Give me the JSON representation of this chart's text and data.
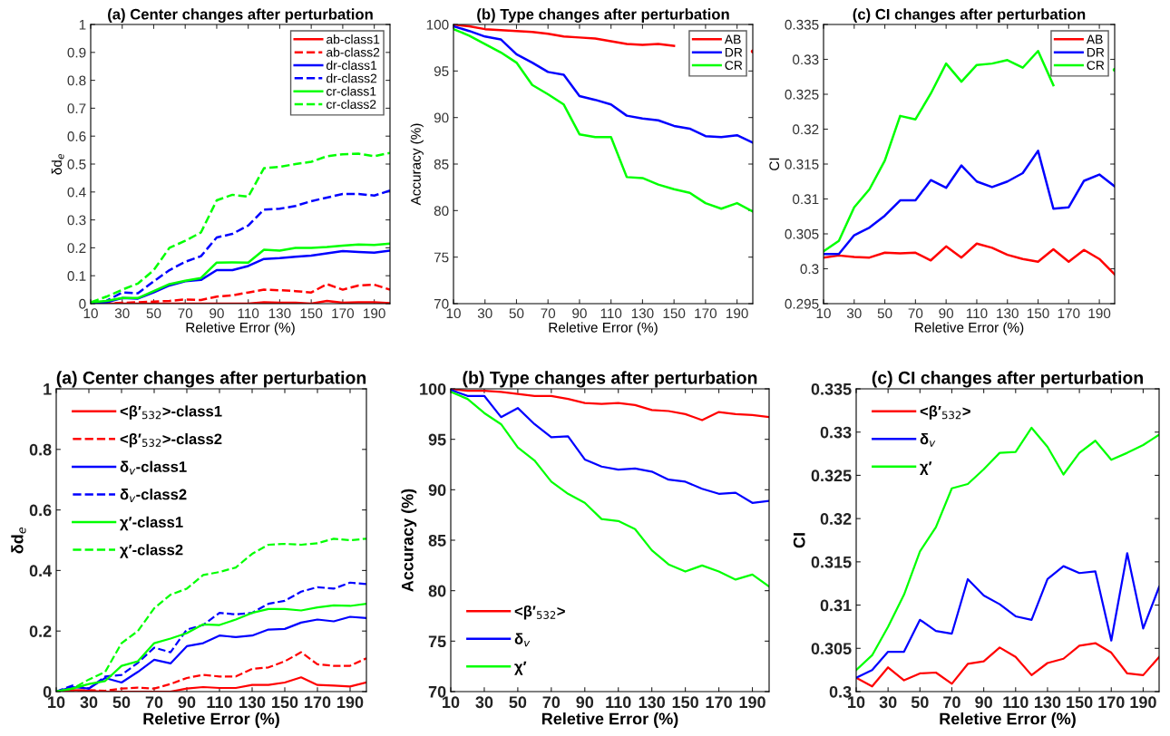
{
  "chart_data": [
    {
      "type": "line",
      "title": "(a) Center changes after perturbation",
      "xlabel": "Reletive Error (%)",
      "ylabel": "δd$_{e}$",
      "x": [
        10,
        20,
        30,
        40,
        50,
        60,
        70,
        80,
        90,
        100,
        110,
        120,
        130,
        140,
        150,
        160,
        170,
        180,
        190,
        200
      ],
      "xlim": [
        10,
        200
      ],
      "xticks": [
        10,
        30,
        50,
        70,
        90,
        110,
        130,
        150,
        170,
        190
      ],
      "ylim": [
        0,
        1
      ],
      "yticks": [
        0,
        0.1,
        0.2,
        0.3,
        0.4,
        0.5,
        0.6,
        0.7,
        0.8,
        0.9,
        1
      ],
      "legend": "top right",
      "grid": false,
      "series": [
        {
          "name": "ab-class1",
          "color": "#ff0000",
          "line_style": "solid",
          "values": [
            0,
            0,
            0,
            0,
            0,
            0,
            0,
            0,
            0,
            0,
            0,
            0.005,
            0.003,
            0.003,
            0,
            0.01,
            0.003,
            0.005,
            0.005,
            0.002
          ]
        },
        {
          "name": "ab-class2",
          "color": "#ff0000",
          "line_style": "dashed",
          "values": [
            0,
            0,
            0.003,
            0.005,
            0.007,
            0.01,
            0.015,
            0.013,
            0.025,
            0.03,
            0.04,
            0.05,
            0.048,
            0.045,
            0.04,
            0.07,
            0.05,
            0.065,
            0.068,
            0.05
          ]
        },
        {
          "name": "dr-class1",
          "color": "#0000ff",
          "line_style": "solid",
          "values": [
            0,
            0.005,
            0.02,
            0.018,
            0.04,
            0.065,
            0.08,
            0.085,
            0.12,
            0.12,
            0.135,
            0.16,
            0.163,
            0.168,
            0.172,
            0.18,
            0.188,
            0.185,
            0.183,
            0.19
          ]
        },
        {
          "name": "dr-class2",
          "color": "#0000ff",
          "line_style": "dashed",
          "values": [
            0,
            0.01,
            0.04,
            0.037,
            0.08,
            0.12,
            0.15,
            0.17,
            0.237,
            0.25,
            0.28,
            0.337,
            0.34,
            0.35,
            0.367,
            0.38,
            0.393,
            0.393,
            0.387,
            0.405
          ]
        },
        {
          "name": "cr-class1",
          "color": "#00ff00",
          "line_style": "solid",
          "values": [
            0.005,
            0.01,
            0.02,
            0.02,
            0.045,
            0.07,
            0.082,
            0.092,
            0.147,
            0.148,
            0.147,
            0.193,
            0.19,
            0.2,
            0.2,
            0.203,
            0.208,
            0.212,
            0.21,
            0.215
          ]
        },
        {
          "name": "cr-class2",
          "color": "#00ff00",
          "line_style": "dashed",
          "values": [
            0.005,
            0.025,
            0.05,
            0.072,
            0.12,
            0.2,
            0.225,
            0.255,
            0.37,
            0.39,
            0.383,
            0.485,
            0.49,
            0.5,
            0.508,
            0.528,
            0.535,
            0.537,
            0.528,
            0.54
          ]
        }
      ]
    },
    {
      "type": "line",
      "title": "(b) Type changes after perturbation",
      "xlabel": "Reletive Error (%)",
      "ylabel": "Accuracy (%)",
      "x": [
        10,
        20,
        30,
        40,
        50,
        60,
        70,
        80,
        90,
        100,
        110,
        120,
        130,
        140,
        150,
        160,
        170,
        180,
        190,
        200
      ],
      "xlim": [
        10,
        200
      ],
      "xticks": [
        10,
        30,
        50,
        70,
        90,
        110,
        130,
        150,
        170,
        190
      ],
      "ylim": [
        70,
        100
      ],
      "yticks": [
        70,
        75,
        80,
        85,
        90,
        95,
        100
      ],
      "legend": "top right",
      "grid": false,
      "series": [
        {
          "name": "AB",
          "color": "#ff0000",
          "values": [
            100,
            99.8,
            99.5,
            99.4,
            99.3,
            99.2,
            99.0,
            98.7,
            98.6,
            98.5,
            98.2,
            97.9,
            97.8,
            97.9,
            97.7,
            null,
            null,
            null,
            null,
            97.1
          ]
        },
        {
          "name": "DR",
          "color": "#0000ff",
          "values": [
            99.8,
            99.3,
            98.7,
            98.4,
            96.8,
            95.9,
            94.9,
            94.6,
            92.3,
            91.9,
            91.4,
            90.2,
            89.9,
            89.7,
            89.1,
            88.8,
            88.0,
            87.9,
            88.1,
            87.3
          ]
        },
        {
          "name": "CR",
          "color": "#00ff00",
          "values": [
            99.5,
            98.8,
            97.9,
            97.0,
            95.9,
            93.5,
            92.5,
            91.4,
            88.2,
            87.9,
            87.9,
            83.6,
            83.5,
            82.8,
            82.3,
            81.9,
            80.8,
            80.2,
            80.8,
            79.9
          ]
        }
      ]
    },
    {
      "type": "line",
      "title": "(c) CI changes after perturbation",
      "xlabel": "Reletive Error (%)",
      "ylabel": "CI",
      "x": [
        10,
        20,
        30,
        40,
        50,
        60,
        70,
        80,
        90,
        100,
        110,
        120,
        130,
        140,
        150,
        160,
        170,
        180,
        190,
        200
      ],
      "xlim": [
        10,
        200
      ],
      "xticks": [
        10,
        30,
        50,
        70,
        90,
        110,
        130,
        150,
        170,
        190
      ],
      "ylim": [
        0.295,
        0.335
      ],
      "yticks": [
        0.295,
        0.3,
        0.305,
        0.31,
        0.315,
        0.32,
        0.325,
        0.33,
        0.335
      ],
      "legend": "top right",
      "grid": false,
      "series": [
        {
          "name": "AB",
          "color": "#ff0000",
          "values": [
            0.3016,
            0.3019,
            0.3017,
            0.3016,
            0.3023,
            0.3022,
            0.3023,
            0.3012,
            0.3032,
            0.3016,
            0.3036,
            0.303,
            0.302,
            0.3014,
            0.301,
            0.3028,
            0.301,
            0.3027,
            0.3014,
            0.2992
          ]
        },
        {
          "name": "DR",
          "color": "#0000ff",
          "values": [
            0.3021,
            0.3021,
            0.3048,
            0.3059,
            0.3076,
            0.3098,
            0.3098,
            0.3127,
            0.3116,
            0.3148,
            0.3125,
            0.3117,
            0.3125,
            0.3137,
            0.3169,
            0.3086,
            0.3088,
            0.3126,
            0.3135,
            0.3118
          ]
        },
        {
          "name": "CR",
          "color": "#00ff00",
          "values": [
            0.3025,
            0.304,
            0.3088,
            0.3114,
            0.3155,
            0.3219,
            0.3214,
            0.3251,
            0.3294,
            0.3268,
            0.3292,
            0.3294,
            0.3299,
            0.3288,
            0.3312,
            0.3263,
            null,
            null,
            null,
            0.3285
          ]
        }
      ]
    },
    {
      "type": "line",
      "title": "(a) Center changes after perturbation",
      "xlabel": "Reletive Error (%)",
      "ylabel": "δd$_{e}$",
      "x": [
        10,
        20,
        30,
        40,
        50,
        60,
        70,
        80,
        90,
        100,
        110,
        120,
        130,
        140,
        150,
        160,
        170,
        180,
        190,
        200
      ],
      "xlim": [
        10,
        200
      ],
      "xticks": [
        10,
        30,
        50,
        70,
        90,
        110,
        130,
        150,
        170,
        190
      ],
      "ylim": [
        0,
        1
      ],
      "yticks": [
        0,
        0.2,
        0.4,
        0.6,
        0.8,
        1
      ],
      "legend": "top left",
      "grid": false,
      "series": [
        {
          "name": "<β′$_{532}$>-class1",
          "color": "#ff0000",
          "line_style": "solid",
          "values": [
            0,
            0.005,
            0.003,
            0,
            0,
            0,
            0,
            0,
            0.01,
            0.015,
            0.012,
            0.012,
            0.022,
            0.022,
            0.03,
            0.047,
            0.022,
            0.02,
            0.017,
            0.03
          ]
        },
        {
          "name": "<β′$_{532}$>-class2",
          "color": "#ff0000",
          "line_style": "dashed",
          "values": [
            0,
            0.003,
            0.005,
            0.003,
            0.01,
            0.013,
            0.01,
            0.025,
            0.045,
            0.055,
            0.05,
            0.05,
            0.075,
            0.08,
            0.1,
            0.13,
            0.09,
            0.085,
            0.085,
            0.11
          ]
        },
        {
          "name": "δ$_{v}$-class1",
          "color": "#0000ff",
          "line_style": "solid",
          "values": [
            0,
            0.015,
            0.01,
            0.045,
            0.03,
            0.065,
            0.105,
            0.093,
            0.15,
            0.16,
            0.185,
            0.18,
            0.185,
            0.205,
            0.207,
            0.228,
            0.238,
            0.232,
            0.247,
            0.243
          ]
        },
        {
          "name": "δ$_{v}$-class2",
          "color": "#0000ff",
          "line_style": "dashed",
          "values": [
            0,
            0.02,
            0.01,
            0.05,
            0.055,
            0.095,
            0.145,
            0.13,
            0.205,
            0.22,
            0.26,
            0.255,
            0.26,
            0.29,
            0.3,
            0.33,
            0.345,
            0.34,
            0.36,
            0.355
          ]
        },
        {
          "name": "χ′-class1",
          "color": "#00ff00",
          "line_style": "solid",
          "values": [
            0,
            0.01,
            0.025,
            0.035,
            0.085,
            0.1,
            0.16,
            0.175,
            0.193,
            0.222,
            0.22,
            0.238,
            0.26,
            0.273,
            0.273,
            0.268,
            0.278,
            0.285,
            0.283,
            0.29
          ]
        },
        {
          "name": "χ′-class2",
          "color": "#00ff00",
          "line_style": "dashed",
          "values": [
            0,
            0.01,
            0.04,
            0.065,
            0.16,
            0.2,
            0.275,
            0.32,
            0.34,
            0.385,
            0.395,
            0.41,
            0.455,
            0.485,
            0.488,
            0.485,
            0.49,
            0.505,
            0.5,
            0.505
          ]
        }
      ]
    },
    {
      "type": "line",
      "title": "(b) Type changes after perturbation",
      "xlabel": "Reletive Error (%)",
      "ylabel": "Accuracy (%)",
      "x": [
        10,
        20,
        30,
        40,
        50,
        60,
        70,
        80,
        90,
        100,
        110,
        120,
        130,
        140,
        150,
        160,
        170,
        180,
        190,
        200
      ],
      "xlim": [
        10,
        200
      ],
      "xticks": [
        10,
        30,
        50,
        70,
        90,
        110,
        130,
        150,
        170,
        190
      ],
      "ylim": [
        70,
        100
      ],
      "yticks": [
        70,
        75,
        80,
        85,
        90,
        95,
        100
      ],
      "legend": "bottom left",
      "grid": false,
      "series": [
        {
          "name": "<β′$_{532}$>",
          "color": "#ff0000",
          "values": [
            100,
            99.8,
            99.8,
            99.7,
            99.5,
            99.3,
            99.3,
            99.0,
            98.6,
            98.5,
            98.6,
            98.4,
            97.9,
            97.8,
            97.5,
            96.9,
            97.7,
            97.5,
            97.4,
            97.2
          ]
        },
        {
          "name": "δ$_{v}$",
          "color": "#0000ff",
          "values": [
            99.9,
            99.3,
            99.3,
            97.2,
            98.1,
            96.5,
            95.2,
            95.3,
            93.0,
            92.3,
            92.0,
            92.1,
            91.8,
            91.0,
            90.8,
            90.1,
            89.6,
            89.7,
            88.7,
            88.9
          ]
        },
        {
          "name": "χ′",
          "color": "#00ff00",
          "values": [
            99.7,
            99.0,
            97.6,
            96.5,
            94.2,
            92.9,
            90.8,
            89.6,
            88.7,
            87.1,
            86.9,
            86.1,
            84.0,
            82.6,
            81.9,
            82.5,
            81.9,
            81.1,
            81.6,
            80.4
          ]
        }
      ]
    },
    {
      "type": "line",
      "title": "(c) CI changes after perturbation",
      "xlabel": "Reletive Error (%)",
      "ylabel": "CI",
      "x": [
        10,
        20,
        30,
        40,
        50,
        60,
        70,
        80,
        90,
        100,
        110,
        120,
        130,
        140,
        150,
        160,
        170,
        180,
        190,
        200
      ],
      "xlim": [
        10,
        200
      ],
      "xticks": [
        10,
        30,
        50,
        70,
        90,
        110,
        130,
        150,
        170,
        190
      ],
      "ylim": [
        0.3,
        0.335
      ],
      "yticks": [
        0.3,
        0.305,
        0.31,
        0.315,
        0.32,
        0.325,
        0.33,
        0.335
      ],
      "legend": "top left",
      "grid": false,
      "series": [
        {
          "name": "<β′$_{532}$>",
          "color": "#ff0000",
          "values": [
            0.3016,
            0.3006,
            0.3028,
            0.3013,
            0.3021,
            0.3022,
            0.3009,
            0.3032,
            0.3035,
            0.3051,
            0.304,
            0.3019,
            0.3033,
            0.3038,
            0.3053,
            0.3056,
            0.3045,
            0.3021,
            0.3019,
            0.304
          ]
        },
        {
          "name": "δ$_{v}$",
          "color": "#0000ff",
          "values": [
            0.3016,
            0.3025,
            0.3046,
            0.3046,
            0.3083,
            0.307,
            0.3067,
            0.313,
            0.3111,
            0.3101,
            0.3087,
            0.3083,
            0.313,
            0.3145,
            0.3137,
            0.3139,
            0.3059,
            0.316,
            0.3073,
            0.3121
          ]
        },
        {
          "name": "χ′",
          "color": "#00ff00",
          "values": [
            0.3025,
            0.3042,
            0.3075,
            0.3112,
            0.3162,
            0.319,
            0.3235,
            0.324,
            0.3257,
            0.3276,
            0.3277,
            0.3305,
            0.3283,
            0.3251,
            0.3276,
            0.329,
            0.3268,
            0.3276,
            0.3285,
            0.3297
          ]
        }
      ]
    }
  ]
}
